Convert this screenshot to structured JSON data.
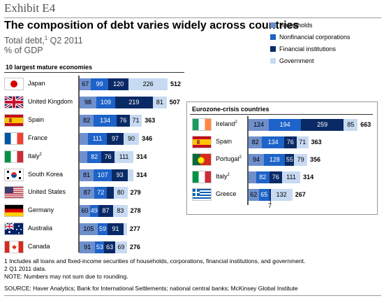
{
  "exhibit": "Exhibit E4",
  "title": "The composition of debt varies widely across countries",
  "subtitle_main": "Total debt,",
  "subtitle_sup": "1",
  "subtitle_rest": " Q2 2011",
  "unit": "% of GDP",
  "colors": {
    "households": "#6f8fcc",
    "nonfinancial": "#1d63c9",
    "financial": "#0a2a66",
    "government": "#c7daf2"
  },
  "chart_data": {
    "type": "bar",
    "orientation": "horizontal",
    "stacked": true,
    "legend": [
      "Households",
      "Nonfinancial corporations",
      "Financial institutions",
      "Government"
    ],
    "legend_position": "top-right",
    "groups": [
      {
        "title": "10 largest mature economies",
        "rows": [
          {
            "country": "Japan",
            "sup": "",
            "flag": "japan",
            "values": [
              67,
              99,
              120,
              226
            ],
            "total": 512
          },
          {
            "country": "United Kingdom",
            "sup": "",
            "flag": "uk",
            "values": [
              98,
              109,
              219,
              81
            ],
            "total": 507
          },
          {
            "country": "Spain",
            "sup": "",
            "flag": "spain",
            "values": [
              82,
              134,
              76,
              71
            ],
            "total": 363
          },
          {
            "country": "France",
            "sup": "",
            "flag": "france",
            "values": [
              48,
              111,
              97,
              90
            ],
            "total": 346
          },
          {
            "country": "Italy",
            "sup": "2",
            "flag": "italy",
            "values": [
              45,
              82,
              76,
              111
            ],
            "total": 314
          },
          {
            "country": "South Korea",
            "sup": "",
            "flag": "korea",
            "values": [
              81,
              107,
              93,
              33
            ],
            "total": 314
          },
          {
            "country": "United States",
            "sup": "",
            "flag": "us",
            "values": [
              87,
              72,
              40,
              80
            ],
            "total": 279
          },
          {
            "country": "Germany",
            "sup": "",
            "flag": "germany",
            "values": [
              60,
              49,
              87,
              83
            ],
            "total": 278
          },
          {
            "country": "Australia",
            "sup": "",
            "flag": "australia",
            "values": [
              105,
              59,
              91,
              21
            ],
            "total": 277
          },
          {
            "country": "Canada",
            "sup": "",
            "flag": "canada",
            "values": [
              91,
              53,
              63,
              69
            ],
            "total": 276
          }
        ]
      },
      {
        "title": "Eurozone-crisis countries",
        "rows": [
          {
            "country": "Ireland",
            "sup": "2",
            "flag": "ireland",
            "values": [
              124,
              194,
              259,
              85
            ],
            "total": 663
          },
          {
            "country": "Spain",
            "sup": "",
            "flag": "spain",
            "values": [
              82,
              134,
              76,
              71
            ],
            "total": 363
          },
          {
            "country": "Portugal",
            "sup": "2",
            "flag": "portugal",
            "values": [
              94,
              128,
              55,
              79
            ],
            "total": 356
          },
          {
            "country": "Italy",
            "sup": "2",
            "flag": "italy",
            "values": [
              45,
              82,
              76,
              111
            ],
            "total": 314
          },
          {
            "country": "Greece",
            "sup": "",
            "flag": "greece",
            "values": [
              62,
              65,
              7,
              132
            ],
            "total": 267
          }
        ]
      }
    ],
    "annotation": "7"
  },
  "notes": [
    "1  Includes all loans and fixed-income securities of households, corporations, financial institutions, and government.",
    "2  Q1 2011 data.",
    "NOTE: Numbers may not sum due to rounding.",
    "SOURCE: Haver Analytics; Bank for International Settlements; national central banks; McKinsey Global Institute"
  ]
}
